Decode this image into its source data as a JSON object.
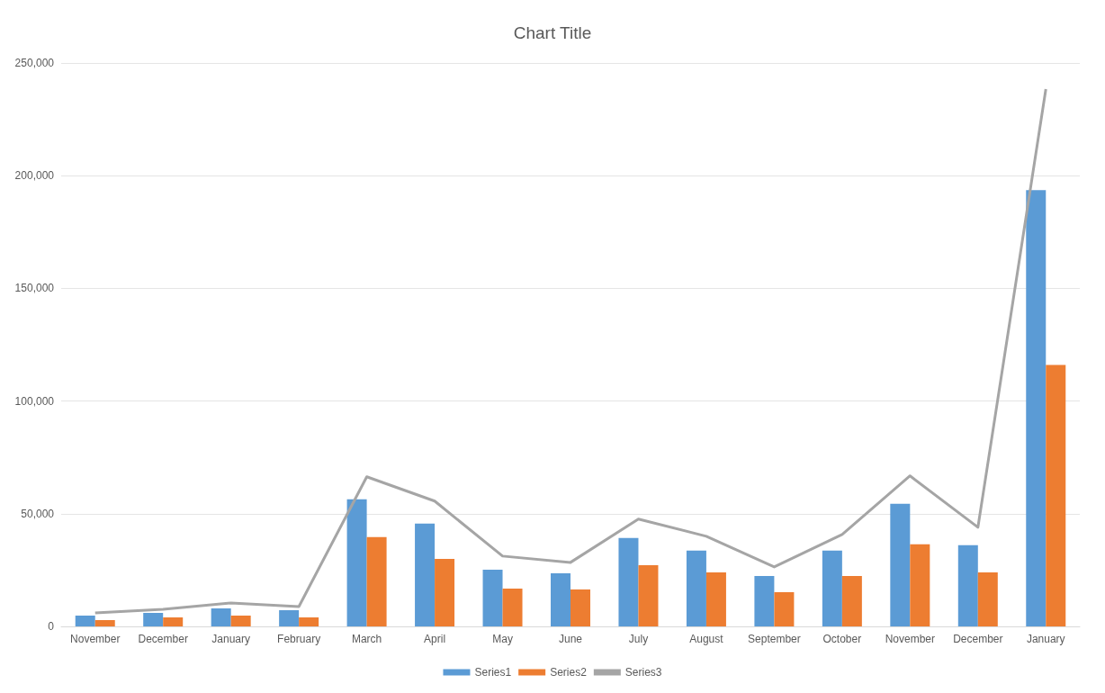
{
  "chart_data": {
    "type": "bar",
    "title": "Chart Title",
    "categories": [
      "November",
      "December",
      "January",
      "February",
      "March",
      "April",
      "May",
      "June",
      "July",
      "August",
      "September",
      "October",
      "November",
      "December",
      "January"
    ],
    "series": [
      {
        "name": "Series1",
        "color": "#5b9bd5",
        "values": [
          4800,
          6000,
          8000,
          7200,
          56400,
          45600,
          25200,
          23600,
          39200,
          33600,
          22400,
          33600,
          54400,
          36000,
          193600
        ]
      },
      {
        "name": "Series2",
        "color": "#ed7d31",
        "values": [
          2800,
          4000,
          4800,
          4000,
          39600,
          30000,
          16800,
          16400,
          27200,
          24000,
          15200,
          22400,
          36400,
          24000,
          116000
        ]
      },
      {
        "name": "Series3",
        "type": "line",
        "color": "#a5a5a5",
        "marker": "none",
        "values": [
          6000,
          7600,
          10400,
          8800,
          66400,
          55600,
          31200,
          28400,
          47600,
          40000,
          26400,
          40800,
          66800,
          44000,
          238400
        ]
      }
    ],
    "ylim": [
      0,
      250000
    ],
    "yticks": [
      0,
      {
        "value": 50000,
        "label": "50,000"
      },
      {
        "value": 100000,
        "label": "100,000"
      },
      {
        "value": 150000,
        "label": "150,000"
      },
      {
        "value": 200000,
        "label": "200,000"
      },
      {
        "value": 250000,
        "label": "250,000"
      }
    ],
    "grid": "y",
    "legend": "bottom"
  }
}
